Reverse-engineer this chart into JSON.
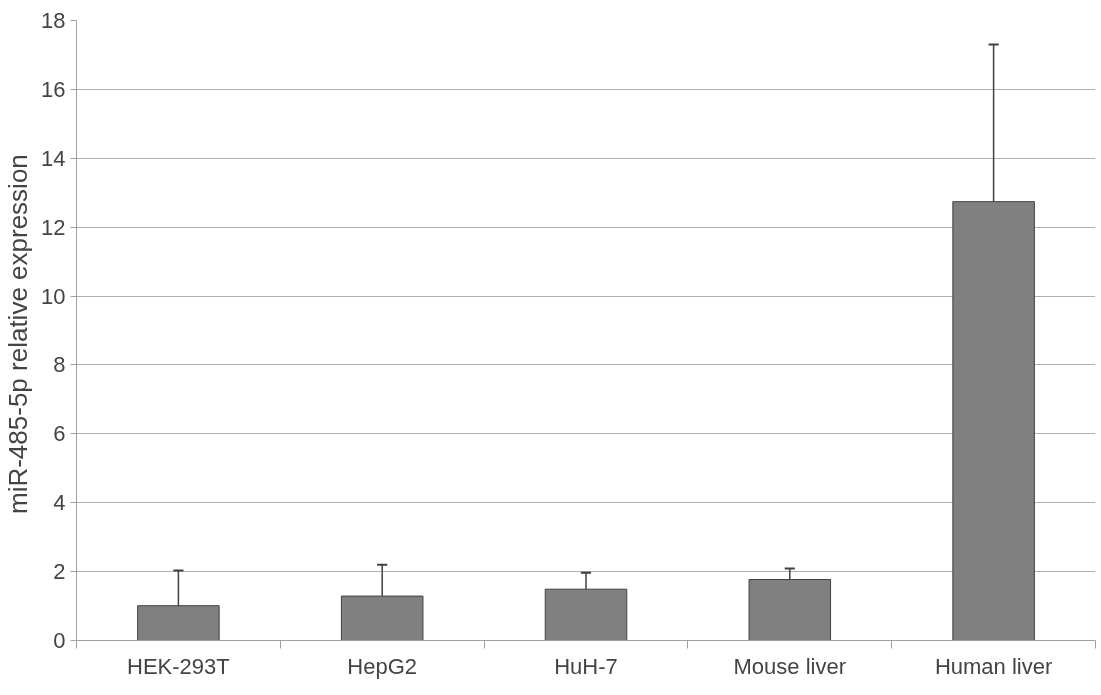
{
  "chart_data": {
    "type": "bar",
    "ylabel": "miR-485-5p relative  expression",
    "categories": [
      "HEK-293T",
      "HepG2",
      "HuH-7",
      "Mouse liver",
      "Human liver"
    ],
    "values": [
      1.01,
      1.29,
      1.49,
      1.77,
      12.74
    ],
    "errors": [
      [
        1.01,
        2.03
      ],
      [
        1.29,
        2.2
      ],
      [
        1.49,
        1.97
      ],
      [
        1.77,
        2.09
      ],
      [
        12.74,
        17.3
      ]
    ],
    "color": "#808080",
    "ylim": [
      0,
      18
    ],
    "yticks": [
      0,
      2,
      4,
      6,
      8,
      10,
      12,
      14,
      16,
      18
    ],
    "grid": "y"
  }
}
